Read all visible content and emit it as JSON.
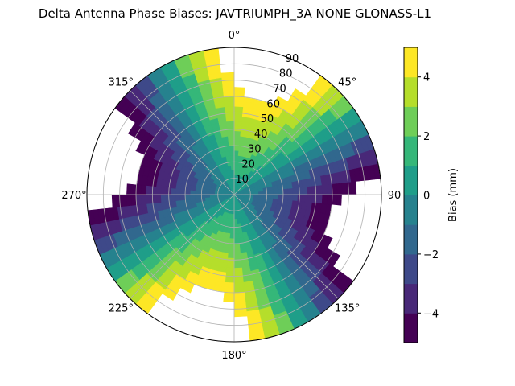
{
  "chart_data": {
    "type": "heatmap",
    "projection": "polar",
    "title": "Delta Antenna Phase Biases: JAVTRIUMPH_3A   NONE GLONASS-L1",
    "theta_ticks": [
      "0°",
      "45°",
      "90",
      "135°",
      "180°",
      "225°",
      "270°",
      "315°"
    ],
    "r_ticks": [
      "10",
      "20",
      "30",
      "40",
      "50",
      "60",
      "70",
      "80",
      "90"
    ],
    "r_range": [
      0,
      90
    ],
    "theta_direction": "clockwise",
    "theta_zero": "top",
    "grid": true,
    "colorbar": {
      "label": "Bias (mm)",
      "range": [
        -5,
        5
      ],
      "ticks": [
        "4",
        "2",
        "0",
        "−2",
        "−4"
      ],
      "levels": [
        -5,
        -4,
        -3,
        -2,
        -1,
        0,
        1,
        2,
        3,
        4,
        5
      ],
      "colors": [
        "#440154",
        "#482878",
        "#3e4989",
        "#31688e",
        "#26828e",
        "#1f9e89",
        "#35b779",
        "#6ece58",
        "#b5de2b",
        "#fde725"
      ]
    },
    "pattern": {
      "description_model": "4-lobe azimuthal pattern, bias ≈ 5·(r/60)·cos(2·(az−15°))",
      "positive_lobe_azimuths_deg": [
        30,
        200
      ],
      "negative_lobe_azimuths_deg": [
        120,
        300
      ],
      "amplitude_mm": 5
    }
  }
}
